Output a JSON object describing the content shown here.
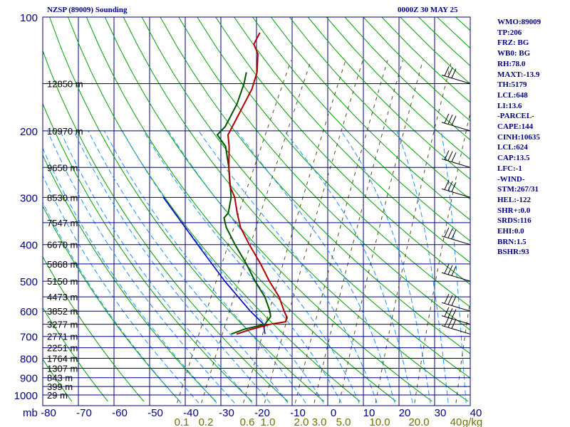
{
  "header": {
    "station_title": "NZSP (89009) Sounding",
    "valid_time": "0000Z 30 MAY 25"
  },
  "stats": [
    "WMO:89009",
    "TP:206",
    "FRZ: BG",
    "WB0: BG",
    "RH:78.0",
    "MAXT:-13.9",
    "TH:5179",
    "LCL:648",
    "LI:13.6",
    "-PARCEL-",
    "CAPE:144",
    "CINH:10635",
    "LCL:624",
    "CAP:13.5",
    "LFC:-1",
    "-WIND-",
    "STM:267/31",
    "HEL:-122",
    "SHR+:0.0",
    "SRDS:116",
    "EHI:0.0",
    "BRN:1.5",
    "BSHR:93"
  ],
  "colors": {
    "frame": "#000080",
    "isotherm": "#00008b",
    "dry_adiabat": "#00a000",
    "moist_adiabat": "#1e90ff",
    "mixing_ratio": "#505020",
    "temperature": "#b00000",
    "dewpoint": "#005500",
    "parcel": "#0000c0",
    "pressure_label": "#000080",
    "mixing_label": "#707000"
  },
  "chart_data": {
    "type": "skew-t log-p sounding",
    "title": "NZSP (89009) Sounding",
    "subtitle": "0000Z 30 MAY 25",
    "xlabel": "mb",
    "x_ticks": [
      -80,
      -70,
      -60,
      -50,
      -40,
      -30,
      -20,
      -10,
      0,
      10,
      20,
      30,
      40
    ],
    "pressure_levels": [
      100,
      200,
      300,
      400,
      500,
      600,
      700,
      800,
      900,
      1000
    ],
    "height_labels": [
      {
        "p": 150,
        "text": "12850 m"
      },
      {
        "p": 200,
        "text": "10970 m"
      },
      {
        "p": 250,
        "text": "9650 m"
      },
      {
        "p": 300,
        "text": "8530 m"
      },
      {
        "p": 350,
        "text": "7547 m"
      },
      {
        "p": 400,
        "text": "6670 m"
      },
      {
        "p": 450,
        "text": "5868 m"
      },
      {
        "p": 500,
        "text": "5150 m"
      },
      {
        "p": 550,
        "text": "4473 m"
      },
      {
        "p": 600,
        "text": "3852 m"
      },
      {
        "p": 650,
        "text": "3277 m"
      },
      {
        "p": 700,
        "text": "2771 m"
      },
      {
        "p": 750,
        "text": "2251 m"
      },
      {
        "p": 800,
        "text": "1764 m"
      },
      {
        "p": 850,
        "text": "1307 m"
      },
      {
        "p": 900,
        "text": "843 m"
      },
      {
        "p": 950,
        "text": "399 m"
      },
      {
        "p": 1000,
        "text": "29 m"
      }
    ],
    "mixing_ratio_labels": [
      "0.1",
      "0.2",
      "0.6",
      "1.0",
      "2.0",
      "3.0",
      "5.0",
      "10.0",
      "20.0",
      "40",
      "g/kg"
    ],
    "mixing_ratio_values": [
      0.1,
      0.2,
      0.6,
      1.0,
      2.0,
      3.0,
      5.0,
      10.0,
      20.0,
      40.0
    ],
    "temperature": [
      {
        "p": 690,
        "t": -34.5
      },
      {
        "p": 670,
        "t": -31
      },
      {
        "p": 650,
        "t": -26.5
      },
      {
        "p": 640,
        "t": -22.5
      },
      {
        "p": 620,
        "t": -23
      },
      {
        "p": 600,
        "t": -24.5
      },
      {
        "p": 550,
        "t": -28
      },
      {
        "p": 500,
        "t": -33
      },
      {
        "p": 450,
        "t": -38
      },
      {
        "p": 400,
        "t": -44
      },
      {
        "p": 360,
        "t": -49
      },
      {
        "p": 330,
        "t": -52
      },
      {
        "p": 300,
        "t": -55
      },
      {
        "p": 280,
        "t": -58
      },
      {
        "p": 250,
        "t": -61
      },
      {
        "p": 220,
        "t": -64
      },
      {
        "p": 205,
        "t": -66
      },
      {
        "p": 190,
        "t": -66
      },
      {
        "p": 170,
        "t": -66
      },
      {
        "p": 155,
        "t": -66
      },
      {
        "p": 140,
        "t": -67
      },
      {
        "p": 125,
        "t": -69.5
      },
      {
        "p": 118,
        "t": -72
      },
      {
        "p": 110,
        "t": -72
      }
    ],
    "dewpoint": [
      {
        "p": 690,
        "t": -36
      },
      {
        "p": 670,
        "t": -33
      },
      {
        "p": 650,
        "t": -28
      },
      {
        "p": 620,
        "t": -27.5
      },
      {
        "p": 600,
        "t": -28.5
      },
      {
        "p": 550,
        "t": -32
      },
      {
        "p": 500,
        "t": -37
      },
      {
        "p": 450,
        "t": -42
      },
      {
        "p": 400,
        "t": -48
      },
      {
        "p": 360,
        "t": -53
      },
      {
        "p": 340,
        "t": -55
      },
      {
        "p": 330,
        "t": -54.5
      },
      {
        "p": 300,
        "t": -56
      },
      {
        "p": 250,
        "t": -61
      },
      {
        "p": 220,
        "t": -65
      },
      {
        "p": 205,
        "t": -69
      },
      {
        "p": 195,
        "t": -68
      },
      {
        "p": 170,
        "t": -68
      },
      {
        "p": 150,
        "t": -69
      },
      {
        "p": 140,
        "t": -70
      }
    ],
    "parcel": [
      {
        "p": 690,
        "t": -26.5
      },
      {
        "p": 648,
        "t": -28.5
      },
      {
        "p": 600,
        "t": -34
      },
      {
        "p": 500,
        "t": -45.5
      },
      {
        "p": 400,
        "t": -58.5
      },
      {
        "p": 300,
        "t": -75
      }
    ],
    "wind_barb_levels": [
      150,
      200,
      250,
      300,
      400,
      500,
      600,
      650,
      690
    ]
  }
}
